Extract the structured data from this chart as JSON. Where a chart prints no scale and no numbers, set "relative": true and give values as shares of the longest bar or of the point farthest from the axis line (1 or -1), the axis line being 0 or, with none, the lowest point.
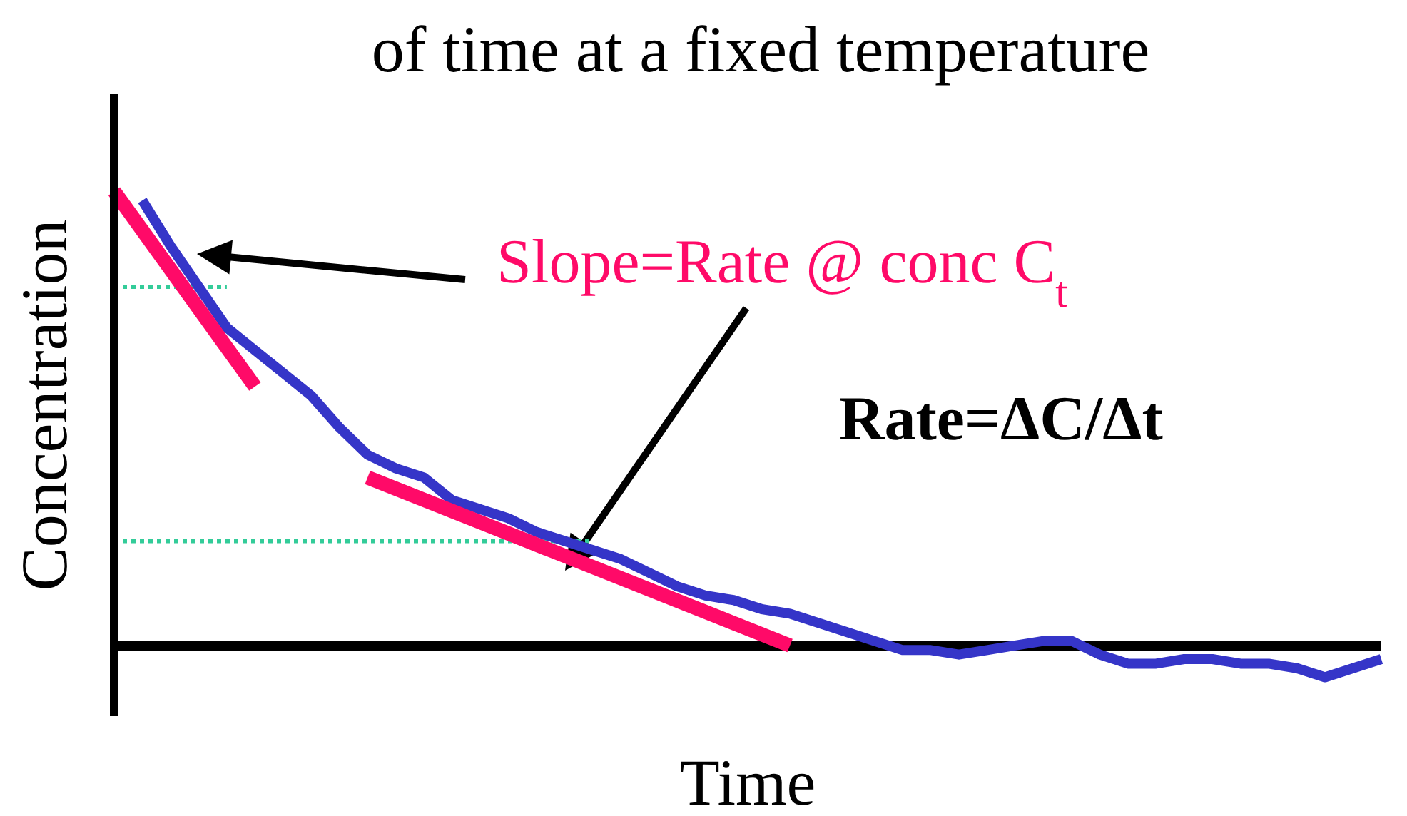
{
  "chart_data": {
    "type": "line",
    "title": "of time at a fixed temperature",
    "xlabel": "Time",
    "ylabel": "Concentration",
    "relative": true,
    "tick_labels": false,
    "grid": false,
    "legend": false,
    "marker": "none",
    "categories": [
      null,
      null,
      null,
      null,
      null,
      null,
      null,
      null,
      null,
      null,
      null,
      null,
      null,
      null,
      null,
      null,
      null,
      null,
      null,
      null,
      null,
      null,
      null,
      null,
      null,
      null,
      null,
      null,
      null,
      null,
      null,
      null,
      null,
      null,
      null,
      null,
      null,
      null,
      null,
      null,
      null,
      null,
      null,
      null,
      null,
      null
    ],
    "series": [
      {
        "type": "line",
        "color": "#3535c8",
        "values": [
          null,
          0.98,
          0.88,
          0.79,
          0.7,
          0.65,
          0.6,
          0.55,
          0.48,
          0.42,
          0.39,
          0.37,
          0.32,
          0.3,
          0.28,
          0.25,
          0.23,
          0.21,
          0.19,
          0.16,
          0.13,
          0.11,
          0.1,
          0.08,
          0.07,
          0.05,
          0.03,
          0.01,
          -0.01,
          -0.01,
          -0.02,
          -0.01,
          0.0,
          0.01,
          0.01,
          -0.02,
          -0.04,
          -0.04,
          -0.03,
          -0.03,
          -0.04,
          -0.04,
          -0.05,
          -0.07,
          -0.05,
          -0.03
        ]
      },
      {
        "type": "line",
        "color": "#ff0a68",
        "values": [
          1.0,
          null,
          null,
          null,
          null,
          0.57,
          null,
          null,
          null,
          null,
          null,
          null,
          null,
          null,
          null,
          null,
          null,
          null,
          null,
          null,
          null,
          null,
          null,
          null,
          null,
          null,
          null,
          null,
          null,
          null,
          null,
          null,
          null,
          null,
          null,
          null,
          null,
          null,
          null,
          null,
          null,
          null,
          null,
          null,
          null,
          null
        ]
      },
      {
        "type": "line",
        "color": "#ff0a68",
        "values": [
          null,
          null,
          null,
          null,
          null,
          null,
          null,
          null,
          null,
          0.37,
          null,
          null,
          null,
          null,
          null,
          null,
          null,
          null,
          null,
          null,
          null,
          null,
          null,
          null,
          0.0,
          null,
          null,
          null,
          null,
          null,
          null,
          null,
          null,
          null,
          null,
          null,
          null,
          null,
          null,
          null,
          null,
          null,
          null,
          null,
          null,
          null
        ]
      }
    ],
    "ref_lines": [
      {
        "axis": "y",
        "value": 0.79,
        "color": "#33cc99",
        "line_style": "dotted"
      },
      {
        "axis": "y",
        "value": 0.23,
        "color": "#33cc99",
        "line_style": "dotted"
      }
    ],
    "annotations": [
      "Slope=Rate @ conc C$_{t}$",
      "Rate=ΔC/Δt"
    ]
  }
}
